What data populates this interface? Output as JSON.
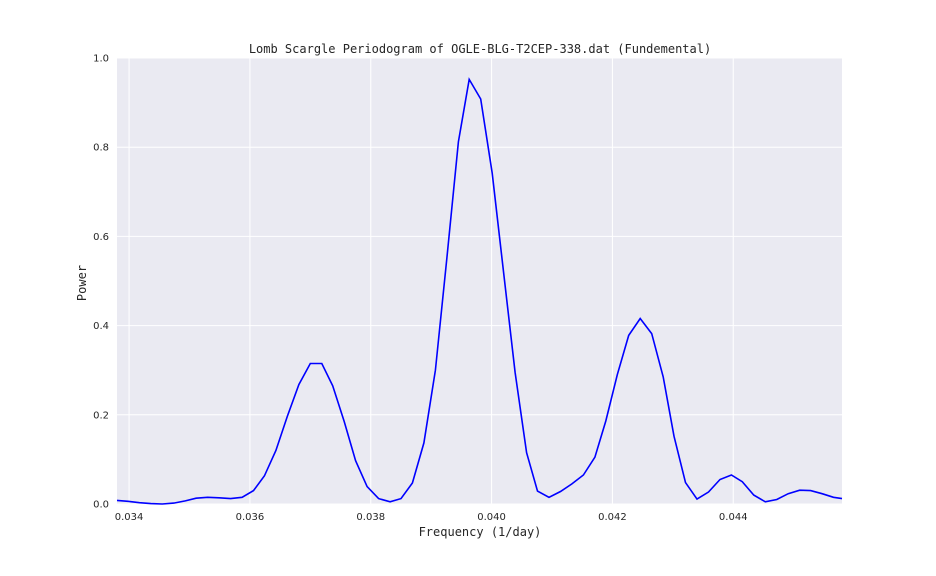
{
  "chart_data": {
    "type": "line",
    "title": "Lomb Scargle Periodogram of OGLE-BLG-T2CEP-338.dat (Fundemental)",
    "xlabel": "Frequency (1/day)",
    "ylabel": "Power",
    "xlim": [
      0.0338,
      0.0458
    ],
    "ylim": [
      0.0,
      1.0
    ],
    "xticks": [
      "0.034",
      "0.036",
      "0.038",
      "0.040",
      "0.042",
      "0.044"
    ],
    "xtick_values": [
      0.034,
      0.036,
      0.038,
      0.04,
      0.042,
      0.044
    ],
    "yticks": [
      "0.0",
      "0.2",
      "0.4",
      "0.6",
      "0.8",
      "1.0"
    ],
    "ytick_values": [
      0.0,
      0.2,
      0.4,
      0.6,
      0.8,
      1.0
    ],
    "grid": true,
    "line_color": "#0000ff",
    "background_color": "#eaeaf2",
    "series": [
      {
        "x": [
          0.0338,
          0.03398,
          0.03417,
          0.03436,
          0.03455,
          0.03474,
          0.03493,
          0.03511,
          0.0353,
          0.03549,
          0.03568,
          0.03587,
          0.03606,
          0.03624,
          0.03643,
          0.03662,
          0.03681,
          0.037,
          0.03719,
          0.03737,
          0.03756,
          0.03775,
          0.03794,
          0.03813,
          0.03832,
          0.0385,
          0.03869,
          0.03888,
          0.03907,
          0.03926,
          0.03945,
          0.03963,
          0.03982,
          0.04001,
          0.0402,
          0.04039,
          0.04058,
          0.04076,
          0.04095,
          0.04114,
          0.04133,
          0.04152,
          0.04171,
          0.04189,
          0.04208,
          0.04227,
          0.04246,
          0.04265,
          0.04284,
          0.04302,
          0.04321,
          0.0434,
          0.04359,
          0.04378,
          0.04397,
          0.04415,
          0.04434,
          0.04453,
          0.04472,
          0.04491,
          0.0451,
          0.04528,
          0.04547,
          0.04566,
          0.0458
        ],
        "y": [
          0.008,
          0.006,
          0.003,
          0.001,
          0.0,
          0.002,
          0.007,
          0.013,
          0.015,
          0.014,
          0.012,
          0.015,
          0.03,
          0.063,
          0.12,
          0.197,
          0.268,
          0.315,
          0.315,
          0.265,
          0.185,
          0.097,
          0.039,
          0.012,
          0.005,
          0.012,
          0.047,
          0.137,
          0.3,
          0.552,
          0.812,
          0.952,
          0.908,
          0.742,
          0.517,
          0.295,
          0.115,
          0.029,
          0.015,
          0.028,
          0.045,
          0.065,
          0.105,
          0.186,
          0.29,
          0.378,
          0.416,
          0.382,
          0.285,
          0.152,
          0.048,
          0.011,
          0.027,
          0.055,
          0.065,
          0.05,
          0.02,
          0.005,
          0.01,
          0.023,
          0.031,
          0.03,
          0.023,
          0.015,
          0.012
        ]
      }
    ]
  }
}
